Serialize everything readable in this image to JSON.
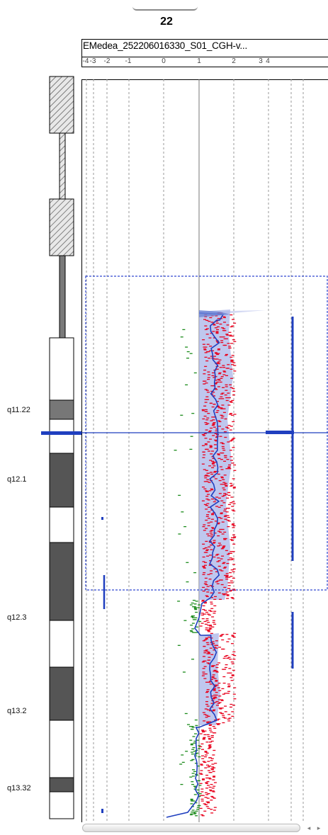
{
  "chromosome": {
    "title": "22"
  },
  "sample": {
    "name": "EMedea_252206016330_S01_CGH-v..."
  },
  "scale": {
    "ticks": [
      "-4",
      "-3",
      "-2",
      "-1",
      "0",
      "1",
      "2",
      "3",
      "4"
    ]
  },
  "bands": [
    "q11.22",
    "q12.1",
    "q12.3",
    "q13.2",
    "q13.32"
  ],
  "colors": {
    "probe_positive": "#e8001c",
    "probe_negative": "#1a8a1a",
    "moving_average": "#1f3fbf",
    "aberration_fill": "#aab4e8",
    "selection_box": "#3048d0",
    "gridline": "#9a9a9a"
  },
  "scrollbar": {
    "left_arrow": "◂",
    "right_arrow": "▸"
  }
}
